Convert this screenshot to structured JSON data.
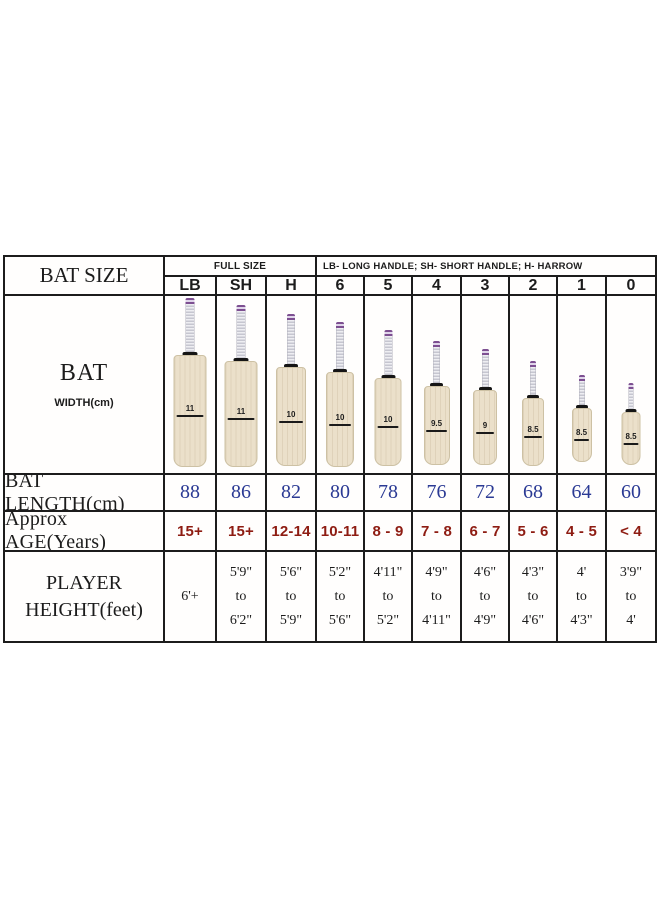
{
  "colors": {
    "border": "#1c1c1c",
    "length_value": "#2b3a94",
    "age_value": "#8e1c12",
    "blade": "#ebe0ca",
    "grip_band": "#7d4f91",
    "collar": "#151515",
    "background": "#ffffff"
  },
  "header": {
    "bat_size": "BAT SIZE",
    "full_size": "FULL SIZE",
    "legend": "LB- LONG HANDLE; SH- SHORT HANDLE; H- HARROW",
    "sizes": [
      "LB",
      "SH",
      "H",
      "6",
      "5",
      "4",
      "3",
      "2",
      "1",
      "0"
    ]
  },
  "rows": {
    "bat_width": {
      "label_top": "BAT",
      "label_bottom": "WIDTH(cm)",
      "values": [
        "11",
        "11",
        "10",
        "10",
        "10",
        "9.5",
        "9",
        "8.5",
        "8.5",
        "8.5"
      ]
    },
    "bat_length": {
      "label": "BAT LENGTH(cm)",
      "values": [
        "88",
        "86",
        "82",
        "80",
        "78",
        "76",
        "72",
        "68",
        "64",
        "60"
      ]
    },
    "age": {
      "label": "Approx AGE(Years)",
      "values": [
        "15+",
        "15+",
        "12-14",
        "10-11",
        "8 - 9",
        "7 - 8",
        "6 - 7",
        "5 - 6",
        "4 - 5",
        "< 4"
      ]
    },
    "height": {
      "label_top": "PLAYER",
      "label_bottom": "HEIGHT(feet)",
      "values": [
        [
          "6'+",
          "",
          ""
        ],
        [
          "5'9\"",
          "to",
          "6'2\""
        ],
        [
          "5'6\"",
          "to",
          "5'9\""
        ],
        [
          "5'2\"",
          "to",
          "5'6\""
        ],
        [
          "4'11\"",
          "to",
          "5'2\""
        ],
        [
          "4'9\"",
          "to",
          "4'11\""
        ],
        [
          "4'6\"",
          "to",
          "4'9\""
        ],
        [
          "4'3\"",
          "to",
          "4'6\""
        ],
        [
          "4'",
          "to",
          "4'3\""
        ],
        [
          "3'9\"",
          "to",
          "4'"
        ]
      ]
    }
  },
  "chart_data": {
    "type": "table",
    "columns": [
      "LB",
      "SH",
      "H",
      "6",
      "5",
      "4",
      "3",
      "2",
      "1",
      "0"
    ],
    "column_group_notes": [
      "FULL SIZE",
      "LB- LONG HANDLE; SH- SHORT HANDLE; H- HARROW"
    ],
    "rows": [
      {
        "label": "BAT WIDTH(cm)",
        "values": [
          11,
          11,
          10,
          10,
          10,
          9.5,
          9,
          8.5,
          8.5,
          8.5
        ]
      },
      {
        "label": "BAT LENGTH(cm)",
        "values": [
          88,
          86,
          82,
          80,
          78,
          76,
          72,
          68,
          64,
          60
        ]
      },
      {
        "label": "Approx AGE(Years)",
        "values": [
          "15+",
          "15+",
          "12-14",
          "10-11",
          "8 - 9",
          "7 - 8",
          "6 - 7",
          "5 - 6",
          "4 - 5",
          "< 4"
        ]
      },
      {
        "label": "PLAYER HEIGHT(feet)",
        "values": [
          "6'+",
          "5'9\" to 6'2\"",
          "5'6\" to 5'9\"",
          "5'2\" to 5'6\"",
          "4'11\" to 5'2\"",
          "4'9\" to 4'11\"",
          "4'6\" to 4'9\"",
          "4'3\" to 4'6\"",
          "4' to 4'3\"",
          "3'9\" to 4'"
        ]
      }
    ]
  }
}
